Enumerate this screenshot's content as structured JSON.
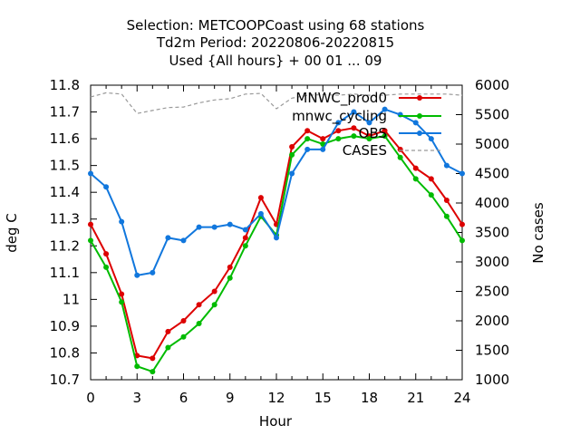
{
  "chart_data": {
    "type": "line",
    "title_lines": [
      "Selection: METCOOPCoast using    68 stations",
      "Td2m   Period: 20220806-20220815",
      "Used {All hours} + 00 01 ... 09"
    ],
    "xlabel": "Hour",
    "ylabel": "deg C",
    "y2label": "No cases",
    "xlim": [
      0,
      24
    ],
    "ylim": [
      10.7,
      11.8
    ],
    "y2lim": [
      1000,
      6000
    ],
    "x_ticks": [
      0,
      3,
      6,
      9,
      12,
      15,
      18,
      21,
      24
    ],
    "y_ticks": [
      "10.7",
      "10.8",
      "10.9",
      "11",
      "11.1",
      "11.2",
      "11.3",
      "11.4",
      "11.5",
      "11.6",
      "11.7",
      "11.8"
    ],
    "y2_ticks": [
      "1000",
      "1500",
      "2000",
      "2500",
      "3000",
      "3500",
      "4000",
      "4500",
      "5000",
      "5500",
      "6000"
    ],
    "legend_position": "top-right",
    "grid": false,
    "x": [
      0,
      1,
      2,
      3,
      4,
      5,
      6,
      7,
      8,
      9,
      10,
      11,
      12,
      13,
      14,
      15,
      16,
      17,
      18,
      19,
      20,
      21,
      22,
      23,
      24
    ],
    "series": [
      {
        "name": "MNWC_prod0",
        "color": "#dd0000",
        "axis": "y",
        "values": [
          11.28,
          11.17,
          11.02,
          10.79,
          10.78,
          10.88,
          10.92,
          10.98,
          11.03,
          11.12,
          11.23,
          11.38,
          11.28,
          11.57,
          11.63,
          11.6,
          11.63,
          11.64,
          11.61,
          11.63,
          11.56,
          11.49,
          11.45,
          11.37,
          11.28
        ]
      },
      {
        "name": "mnwc_cycling",
        "color": "#00bb00",
        "axis": "y",
        "values": [
          11.22,
          11.12,
          10.99,
          10.75,
          10.73,
          10.82,
          10.86,
          10.91,
          10.98,
          11.08,
          11.2,
          11.31,
          11.24,
          11.54,
          11.6,
          11.58,
          11.6,
          11.61,
          11.6,
          11.61,
          11.53,
          11.45,
          11.39,
          11.31,
          11.22
        ]
      },
      {
        "name": "OBS",
        "color": "#1177dd",
        "axis": "y",
        "values": [
          11.47,
          11.42,
          11.29,
          11.09,
          11.1,
          11.23,
          11.22,
          11.27,
          11.27,
          11.28,
          11.26,
          11.32,
          11.23,
          11.47,
          11.56,
          11.56,
          11.66,
          11.7,
          11.66,
          11.71,
          11.69,
          11.66,
          11.6,
          11.5,
          11.47
        ]
      },
      {
        "name": "CASES",
        "color": "#999999",
        "axis": "y2",
        "values": [
          5800,
          5870,
          5850,
          5520,
          5570,
          5620,
          5630,
          5700,
          5750,
          5770,
          5850,
          5860,
          5600,
          5780,
          5830,
          5840,
          5830,
          5850,
          5830,
          5830,
          5850,
          5850,
          5850,
          5850,
          5830
        ]
      }
    ]
  }
}
